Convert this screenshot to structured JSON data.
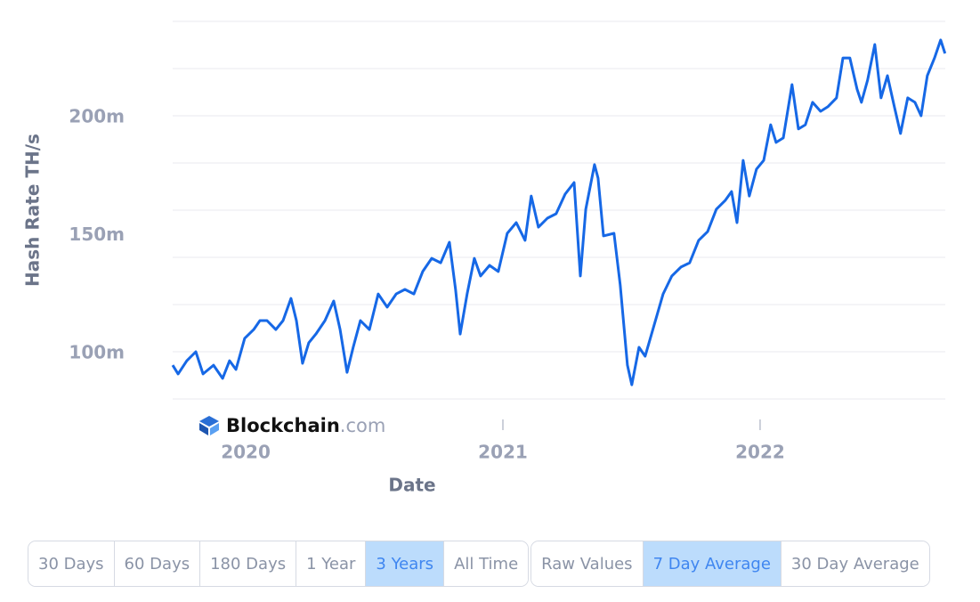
{
  "chart_data": {
    "type": "line",
    "y_label": "Hash Rate TH/s",
    "x_label": "Date",
    "watermark": {
      "brand": "Blockchain",
      "suffix": ".com"
    },
    "color": "#1668e6",
    "x": [
      2019.716,
      2019.737,
      2019.771,
      2019.806,
      2019.834,
      2019.875,
      2019.91,
      2019.937,
      2019.962,
      2019.996,
      2020.031,
      2020.055,
      2020.083,
      2020.117,
      2020.145,
      2020.176,
      2020.197,
      2020.221,
      2020.245,
      2020.273,
      2020.308,
      2020.342,
      2020.367,
      2020.394,
      2020.418,
      2020.446,
      2020.481,
      2020.515,
      2020.55,
      2020.585,
      2020.619,
      2020.654,
      2020.688,
      2020.723,
      2020.758,
      2020.792,
      2020.816,
      2020.834,
      2020.861,
      2020.889,
      2020.913,
      2020.948,
      2020.982,
      2021.017,
      2021.052,
      2021.086,
      2021.11,
      2021.138,
      2021.173,
      2021.207,
      2021.242,
      2021.277,
      2021.301,
      2021.322,
      2021.356,
      2021.37,
      2021.391,
      2021.432,
      2021.456,
      2021.484,
      2021.501,
      2021.529,
      2021.553,
      2021.588,
      2021.623,
      2021.657,
      2021.692,
      2021.726,
      2021.761,
      2021.796,
      2021.83,
      2021.865,
      2021.889,
      2021.91,
      2021.934,
      2021.958,
      2021.986,
      2022.014,
      2022.041,
      2022.062,
      2022.09,
      2022.124,
      2022.149,
      2022.176,
      2022.204,
      2022.235,
      2022.263,
      2022.297,
      2022.322,
      2022.349,
      2022.377,
      2022.394,
      2022.418,
      2022.446,
      2022.47,
      2022.495,
      2022.522,
      2022.546,
      2022.574,
      2022.602,
      2022.626,
      2022.65,
      2022.678,
      2022.702,
      2022.719
    ],
    "values": [
      94.3,
      90.6,
      96.2,
      100.0,
      90.6,
      94.3,
      88.7,
      96.2,
      92.5,
      105.7,
      109.4,
      113.2,
      113.2,
      109.4,
      113.2,
      122.6,
      113.2,
      95.1,
      103.8,
      107.5,
      113.2,
      121.5,
      109.4,
      91.3,
      101.9,
      113.2,
      109.4,
      124.5,
      118.9,
      124.5,
      126.4,
      124.5,
      134.0,
      139.6,
      137.7,
      146.4,
      126.4,
      107.5,
      124.5,
      139.6,
      132.1,
      136.6,
      134.0,
      150.2,
      154.7,
      147.2,
      166.0,
      152.8,
      156.6,
      158.5,
      166.8,
      171.7,
      132.1,
      160.4,
      179.3,
      173.6,
      149.1,
      150.2,
      128.3,
      94.3,
      86.0,
      101.9,
      98.1,
      111.3,
      124.5,
      132.1,
      135.9,
      137.7,
      147.2,
      150.9,
      160.4,
      164.2,
      167.9,
      154.7,
      181.1,
      166.0,
      177.4,
      181.1,
      196.2,
      188.7,
      190.6,
      213.2,
      194.4,
      196.2,
      205.7,
      201.9,
      203.8,
      207.6,
      224.5,
      224.5,
      211.3,
      205.7,
      215.1,
      230.2,
      207.6,
      217.0,
      203.8,
      192.5,
      207.6,
      205.7,
      200.0,
      217.0,
      224.5,
      232.1,
      226.4
    ],
    "xlim": [
      2019.716,
      2022.72
    ],
    "xticks": [
      2020,
      2021,
      2022
    ],
    "ylim": [
      80,
      240
    ],
    "yticks": [
      {
        "value": 100,
        "label": "100m"
      },
      {
        "value": 150,
        "label": "150m"
      },
      {
        "value": 200,
        "label": "200m"
      }
    ],
    "grid_lines": [
      80,
      100,
      120,
      140,
      160,
      180,
      200,
      220,
      240
    ]
  },
  "controls": [
    [
      {
        "label": "30 Days",
        "selected": false
      },
      {
        "label": "60 Days",
        "selected": false
      },
      {
        "label": "180 Days",
        "selected": false
      },
      {
        "label": "1 Year",
        "selected": false
      },
      {
        "label": "3 Years",
        "selected": true
      },
      {
        "label": "All Time",
        "selected": false
      }
    ],
    [
      {
        "label": "Raw Values",
        "selected": false
      },
      {
        "label": "7 Day Average",
        "selected": true
      },
      {
        "label": "30 Day Average",
        "selected": false
      }
    ]
  ]
}
